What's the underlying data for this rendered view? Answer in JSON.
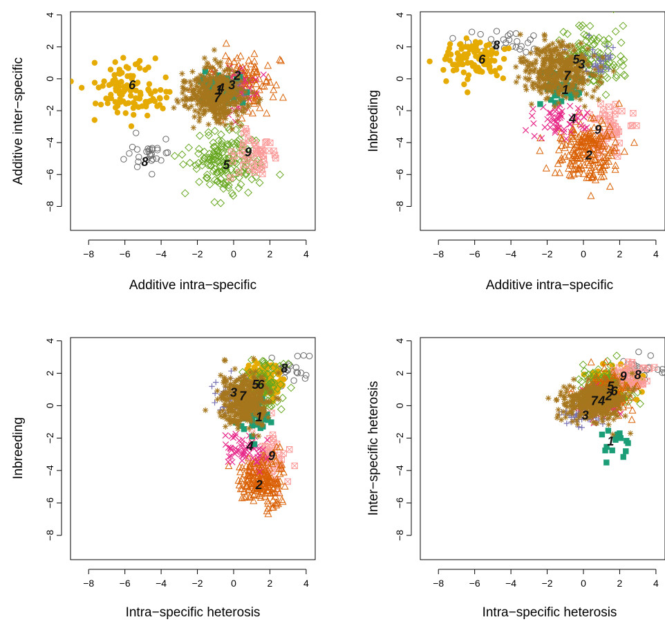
{
  "palette": {
    "1": "#1b9e77",
    "2": "#d95f02",
    "3": "#7570b3",
    "4": "#e7298a",
    "5": "#66a61e",
    "6": "#e6ab02",
    "7": "#a6761d",
    "8": "#666666",
    "9": "#fb9a99"
  },
  "markers": {
    "1": "filled-square",
    "2": "triangle",
    "3": "plus",
    "4": "cross",
    "5": "diamond",
    "6": "filled-circle",
    "7": "asterisk",
    "8": "circle",
    "9": "boxed-cross"
  },
  "chart_data": [
    {
      "type": "scatter",
      "xlabel": "Additive intra−specific",
      "ylabel": "Additive inter−specific",
      "xlim": [
        -9,
        4.5
      ],
      "ylim": [
        -9.5,
        4.2
      ],
      "xticks": [
        "−8",
        "−6",
        "−4",
        "−2",
        "0",
        "2",
        "4"
      ],
      "yticks": [
        "−8",
        "−6",
        "−4",
        "−2",
        "0",
        "2",
        "4"
      ],
      "grid": false,
      "clusters": [
        {
          "label": "1",
          "cx": -0.8,
          "cy": -0.7,
          "sx": 0.6,
          "sy": 0.6,
          "n": 60,
          "center": [
            -0.8,
            -0.7
          ]
        },
        {
          "label": "2",
          "cx": 0.2,
          "cy": -0.3,
          "sx": 0.9,
          "sy": 0.9,
          "n": 160,
          "center": [
            0.2,
            0.2
          ]
        },
        {
          "label": "3",
          "cx": -0.2,
          "cy": -0.4,
          "sx": 0.5,
          "sy": 0.5,
          "n": 40,
          "center": [
            -0.1,
            -0.4
          ]
        },
        {
          "label": "4",
          "cx": 0.1,
          "cy": -0.7,
          "sx": 0.6,
          "sy": 0.7,
          "n": 70,
          "center": [
            -0.7,
            -0.6
          ]
        },
        {
          "label": "5",
          "cx": -0.3,
          "cy": -5.2,
          "sx": 1.0,
          "sy": 1.0,
          "n": 170,
          "center": [
            -0.4,
            -5.4
          ]
        },
        {
          "label": "6",
          "cx": -5.8,
          "cy": -0.7,
          "sx": 1.0,
          "sy": 0.9,
          "n": 110,
          "center": [
            -5.6,
            -0.4
          ]
        },
        {
          "label": "7",
          "cx": -1.0,
          "cy": -1.0,
          "sx": 0.9,
          "sy": 0.8,
          "n": 380,
          "center": [
            -0.9,
            -1.2
          ]
        },
        {
          "label": "8",
          "cx": -4.8,
          "cy": -4.9,
          "sx": 0.7,
          "sy": 0.6,
          "n": 28,
          "center": [
            -4.9,
            -5.2
          ]
        },
        {
          "label": "9",
          "cx": 1.2,
          "cy": -4.8,
          "sx": 0.6,
          "sy": 0.8,
          "n": 50,
          "center": [
            0.8,
            -4.6
          ]
        }
      ]
    },
    {
      "type": "scatter",
      "xlabel": "Additive intra−specific",
      "ylabel": "Inbreeding",
      "xlim": [
        -9,
        4.5
      ],
      "ylim": [
        -9.5,
        4.2
      ],
      "xticks": [
        "−8",
        "−6",
        "−4",
        "−2",
        "0",
        "2",
        "4"
      ],
      "yticks": [
        "−8",
        "−6",
        "−4",
        "−2",
        "0",
        "2",
        "4"
      ],
      "grid": false,
      "clusters": [
        {
          "label": "1",
          "cx": -1.0,
          "cy": -0.5,
          "sx": 0.6,
          "sy": 0.5,
          "n": 40,
          "center": [
            -1.0,
            -0.7
          ]
        },
        {
          "label": "2",
          "cx": 0.2,
          "cy": -4.6,
          "sx": 0.8,
          "sy": 0.9,
          "n": 200,
          "center": [
            0.3,
            -4.8
          ]
        },
        {
          "label": "3",
          "cx": 0.5,
          "cy": 1.0,
          "sx": 0.6,
          "sy": 0.6,
          "n": 50,
          "center": [
            -0.1,
            0.9
          ]
        },
        {
          "label": "4",
          "cx": -1.2,
          "cy": -2.6,
          "sx": 0.8,
          "sy": 0.6,
          "n": 55,
          "center": [
            -0.6,
            -2.5
          ]
        },
        {
          "label": "5",
          "cx": 0.6,
          "cy": 1.3,
          "sx": 0.9,
          "sy": 0.9,
          "n": 110,
          "center": [
            -0.4,
            1.2
          ]
        },
        {
          "label": "6",
          "cx": -6.2,
          "cy": 1.3,
          "sx": 0.8,
          "sy": 0.6,
          "n": 100,
          "center": [
            -5.6,
            1.2
          ]
        },
        {
          "label": "7",
          "cx": -1.3,
          "cy": 0.5,
          "sx": 1.0,
          "sy": 0.8,
          "n": 380,
          "center": [
            -0.9,
            0.2
          ]
        },
        {
          "label": "8",
          "cx": -4.3,
          "cy": 2.2,
          "sx": 0.8,
          "sy": 0.4,
          "n": 28,
          "center": [
            -4.8,
            2.1
          ]
        },
        {
          "label": "9",
          "cx": 1.2,
          "cy": -3.2,
          "sx": 0.7,
          "sy": 0.9,
          "n": 55,
          "center": [
            0.8,
            -3.2
          ]
        }
      ]
    },
    {
      "type": "scatter",
      "xlabel": "Intra−specific heterosis",
      "ylabel": "Inbreeding",
      "xlim": [
        -9,
        4.5
      ],
      "ylim": [
        -9.5,
        4.2
      ],
      "xticks": [
        "−8",
        "−6",
        "−4",
        "−2",
        "0",
        "2",
        "4"
      ],
      "yticks": [
        "−8",
        "−6",
        "−4",
        "−2",
        "0",
        "2",
        "4"
      ],
      "grid": false,
      "clusters": [
        {
          "label": "1",
          "cx": 1.2,
          "cy": -0.8,
          "sx": 0.5,
          "sy": 0.6,
          "n": 40,
          "center": [
            1.4,
            -0.7
          ]
        },
        {
          "label": "2",
          "cx": 1.5,
          "cy": -4.6,
          "sx": 0.6,
          "sy": 0.8,
          "n": 200,
          "center": [
            1.4,
            -4.9
          ]
        },
        {
          "label": "3",
          "cx": 0.0,
          "cy": 0.6,
          "sx": 0.6,
          "sy": 0.6,
          "n": 50,
          "center": [
            0.0,
            0.8
          ]
        },
        {
          "label": "4",
          "cx": 0.8,
          "cy": -2.7,
          "sx": 0.6,
          "sy": 0.5,
          "n": 55,
          "center": [
            0.9,
            -2.5
          ]
        },
        {
          "label": "5",
          "cx": 1.6,
          "cy": 1.1,
          "sx": 0.7,
          "sy": 0.8,
          "n": 110,
          "center": [
            1.2,
            1.3
          ]
        },
        {
          "label": "6",
          "cx": 1.7,
          "cy": 1.5,
          "sx": 0.6,
          "sy": 0.5,
          "n": 100,
          "center": [
            1.5,
            1.3
          ]
        },
        {
          "label": "7",
          "cx": 0.6,
          "cy": 0.3,
          "sx": 0.7,
          "sy": 0.8,
          "n": 380,
          "center": [
            0.5,
            0.6
          ]
        },
        {
          "label": "8",
          "cx": 3.1,
          "cy": 2.2,
          "sx": 0.5,
          "sy": 0.5,
          "n": 28,
          "center": [
            2.8,
            2.3
          ]
        },
        {
          "label": "9",
          "cx": 2.0,
          "cy": -3.3,
          "sx": 0.6,
          "sy": 0.9,
          "n": 55,
          "center": [
            2.1,
            -3.1
          ]
        }
      ]
    },
    {
      "type": "scatter",
      "xlabel": "Intra−specific heterosis",
      "ylabel": "Inter−specific heterosis",
      "xlim": [
        -9,
        4.5
      ],
      "ylim": [
        -9.5,
        4.2
      ],
      "xticks": [
        "−8",
        "−6",
        "−4",
        "−2",
        "0",
        "2",
        "4"
      ],
      "yticks": [
        "−8",
        "−6",
        "−4",
        "−2",
        "0",
        "2",
        "4"
      ],
      "grid": false,
      "clusters": [
        {
          "label": "1",
          "cx": 1.9,
          "cy": -2.4,
          "sx": 0.6,
          "sy": 0.5,
          "n": 16,
          "center": [
            1.5,
            -2.2
          ]
        },
        {
          "label": "2",
          "cx": 1.3,
          "cy": 0.8,
          "sx": 0.7,
          "sy": 0.6,
          "n": 140,
          "center": [
            1.4,
            0.6
          ]
        },
        {
          "label": "3",
          "cx": -0.2,
          "cy": -0.6,
          "sx": 0.6,
          "sy": 0.4,
          "n": 40,
          "center": [
            0.1,
            -0.6
          ]
        },
        {
          "label": "4",
          "cx": 0.9,
          "cy": 0.1,
          "sx": 0.6,
          "sy": 0.5,
          "n": 55,
          "center": [
            1.0,
            0.3
          ]
        },
        {
          "label": "5",
          "cx": 1.5,
          "cy": 1.3,
          "sx": 0.8,
          "sy": 0.7,
          "n": 110,
          "center": [
            1.5,
            1.2
          ]
        },
        {
          "label": "6",
          "cx": 1.8,
          "cy": 1.4,
          "sx": 0.7,
          "sy": 0.5,
          "n": 100,
          "center": [
            1.7,
            0.9
          ]
        },
        {
          "label": "7",
          "cx": 0.6,
          "cy": 0.3,
          "sx": 0.9,
          "sy": 0.6,
          "n": 380,
          "center": [
            0.6,
            0.3
          ]
        },
        {
          "label": "8",
          "cx": 3.3,
          "cy": 2.2,
          "sx": 0.6,
          "sy": 0.5,
          "n": 28,
          "center": [
            3.0,
            1.9
          ]
        },
        {
          "label": "9",
          "cx": 2.6,
          "cy": 1.9,
          "sx": 0.7,
          "sy": 0.5,
          "n": 50,
          "center": [
            2.2,
            1.8
          ]
        }
      ]
    }
  ]
}
